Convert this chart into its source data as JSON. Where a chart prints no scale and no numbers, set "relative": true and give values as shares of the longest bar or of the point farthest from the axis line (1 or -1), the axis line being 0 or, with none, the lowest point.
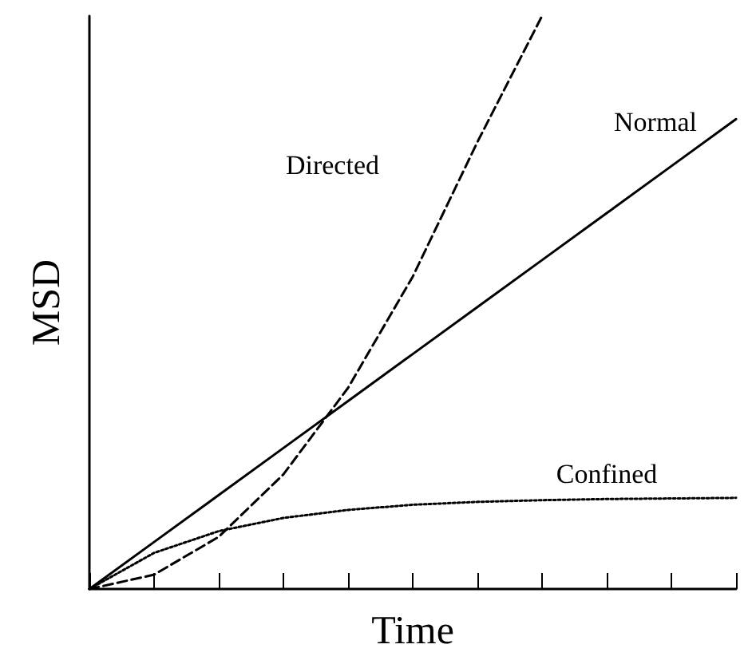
{
  "chart_data": {
    "type": "line",
    "xlabel": "Time",
    "ylabel": "MSD",
    "relative": true,
    "tick_labels": false,
    "marker": "none",
    "grid": false,
    "legend": false,
    "categories": [
      null,
      null,
      null,
      null,
      null,
      null,
      null,
      null,
      null,
      null,
      null
    ],
    "series": [
      {
        "name": "Normal",
        "color": "#000000",
        "line_style": "solid",
        "values": [
          0,
          0.082,
          0.164,
          0.246,
          0.328,
          0.41,
          0.492,
          0.574,
          0.656,
          0.738,
          0.82
        ]
      },
      {
        "name": "Directed",
        "color": "#000000",
        "line_style": "dashed",
        "values": [
          0,
          0.025,
          0.091,
          0.2,
          0.351,
          0.545,
          0.78,
          1,
          null,
          null,
          null
        ]
      },
      {
        "name": "Confined",
        "color": "#000000",
        "line_style": "dotted",
        "values": [
          0,
          0.063,
          0.101,
          0.124,
          0.138,
          0.147,
          0.152,
          0.155,
          0.157,
          0.158,
          0.159
        ]
      }
    ]
  }
}
